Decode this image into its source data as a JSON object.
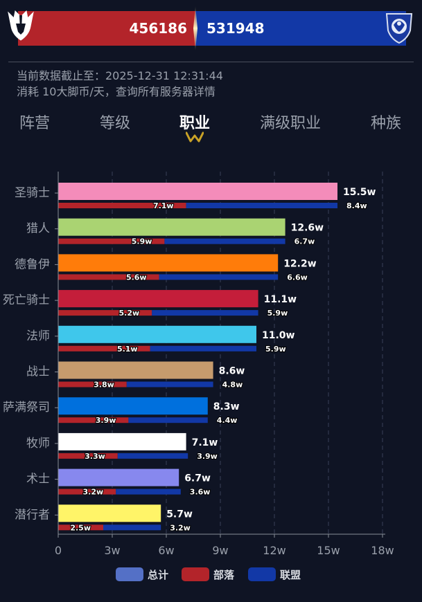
{
  "header": {
    "horde_count": "456186",
    "alliance_count": "531948",
    "horde_color": "#b3242a",
    "alliance_color": "#1238a6"
  },
  "info": {
    "line1": "当前数据截止至：2025-12-31 12:31:44",
    "line2": "消耗 10大脚币/天，查询所有服务器详情"
  },
  "tabs": [
    {
      "label": "阵营"
    },
    {
      "label": "等级"
    },
    {
      "label": "职业",
      "active": true
    },
    {
      "label": "满级职业"
    },
    {
      "label": "种族"
    }
  ],
  "legend": {
    "total": "总计",
    "horde": "部落",
    "alliance": "联盟",
    "total_color": "#5470c6",
    "horde_color": "#b3242a",
    "alliance_color": "#1238a6"
  },
  "chart_data": {
    "type": "bar",
    "orientation": "horizontal",
    "unit": "w",
    "categories": [
      "圣骑士",
      "猎人",
      "德鲁伊",
      "死亡骑士",
      "法师",
      "战士",
      "萨满祭司",
      "牧师",
      "术士",
      "潜行者"
    ],
    "series": [
      {
        "name": "总计",
        "values": [
          15.5,
          12.6,
          12.2,
          11.1,
          11.0,
          8.6,
          8.3,
          7.1,
          6.7,
          5.7
        ]
      },
      {
        "name": "部落",
        "values": [
          7.1,
          5.9,
          5.6,
          5.2,
          5.1,
          3.8,
          3.9,
          3.3,
          3.2,
          2.5
        ]
      },
      {
        "name": "联盟",
        "values": [
          8.4,
          6.7,
          6.6,
          5.9,
          5.9,
          4.8,
          4.4,
          3.9,
          3.6,
          3.2
        ]
      }
    ],
    "class_colors": [
      "#f48cba",
      "#aad372",
      "#ff7c0a",
      "#c41e3a",
      "#3fc7eb",
      "#c69b6d",
      "#0070dd",
      "#ffffff",
      "#8788ee",
      "#fff468"
    ],
    "xlim": [
      0,
      18
    ],
    "x_ticks": [
      "0",
      "3w",
      "6w",
      "9w",
      "12w",
      "15w",
      "18w"
    ],
    "grid": true
  }
}
